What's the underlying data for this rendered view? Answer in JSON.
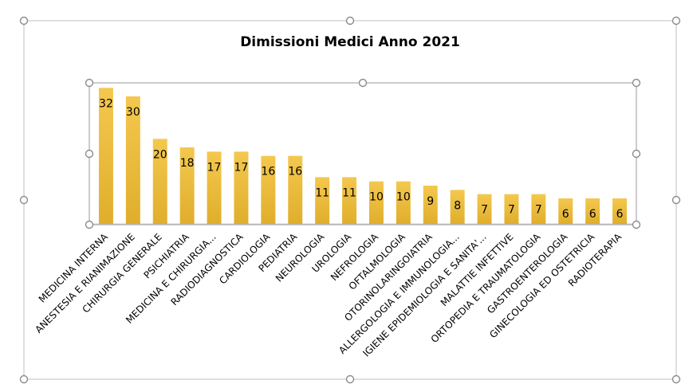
{
  "chart_data": {
    "type": "bar",
    "title": "Dimissioni Medici Anno 2021",
    "categories": [
      "MEDICINA INTERNA",
      "ANESTESIA E RIANIMAZIONE",
      "CHIRURGIA GENERALE",
      "PSICHIATRIA",
      "MEDICINA E CHIRURGIA...",
      "RADIODIAGNOSTICA",
      "CARDIOLOGIA",
      "PEDIATRIA",
      "NEUROLOGIA",
      "UROLOGIA",
      "NEFROLOGIA",
      "OFTALMOLOGIA",
      "OTORINOLARINGOIATRIA",
      "ALLERGOLOGIA E IMMUNOLOGIA...",
      "IGIENE EPIDEMIOLOGIA E SANITA'...",
      "MALATTIE INFETTIVE",
      "ORTOPEDIA E TRAUMATOLOGIA",
      "GASTROENTEROLOGIA",
      "GINECOLOGIA ED OSTETRICIA",
      "RADIOTERAPIA"
    ],
    "values": [
      32,
      30,
      20,
      18,
      17,
      17,
      16,
      16,
      11,
      11,
      10,
      10,
      9,
      8,
      7,
      7,
      7,
      6,
      6,
      6
    ],
    "ylim": [
      0,
      33
    ],
    "grid": false,
    "legend": "none",
    "colors": {
      "bar_top": "#f4c84e",
      "bar_bottom": "#e0ae2c"
    }
  }
}
